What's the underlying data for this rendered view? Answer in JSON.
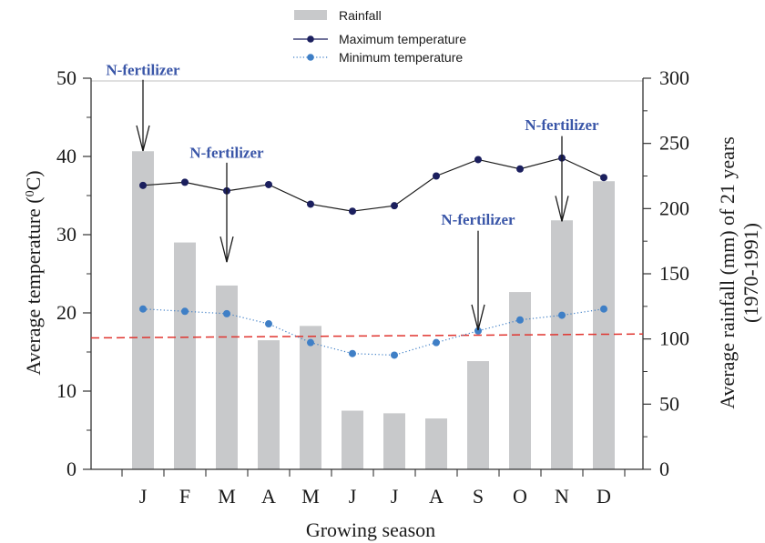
{
  "chart_data": {
    "type": "bar",
    "categories": [
      "J",
      "F",
      "M",
      "A",
      "M",
      "J",
      "J",
      "A",
      "S",
      "O",
      "N",
      "D"
    ],
    "xlabel": "Growing season",
    "ylabel_left": "Average temperature (",
    "ylabel_left_sup": "0",
    "ylabel_left_end": "C)",
    "ylabel_right_line1": "Average rainfall (mm) of 21 years",
    "ylabel_right_line2": "(1970-1991)",
    "ylim_left": [
      0,
      50
    ],
    "yticks_left": [
      0,
      10,
      20,
      30,
      40,
      50
    ],
    "ylim_right": [
      0,
      300
    ],
    "yticks_right": [
      0,
      50,
      100,
      150,
      200,
      250,
      300
    ],
    "series": [
      {
        "name": "Rainfall",
        "kind": "bar",
        "axis": "right",
        "color": "#c8c9cb",
        "values": [
          244,
          174,
          141,
          99,
          110,
          45,
          43,
          39,
          83,
          136,
          191,
          221
        ]
      },
      {
        "name": "Maximum temperature",
        "kind": "line",
        "axis": "left",
        "color": "#1b1f5e",
        "values": [
          36.3,
          36.7,
          35.6,
          36.4,
          33.9,
          33.0,
          33.7,
          37.5,
          39.6,
          38.4,
          39.8,
          37.3
        ]
      },
      {
        "name": "Minimum temperature",
        "kind": "dotted-line",
        "axis": "left",
        "color": "#3f7fc6",
        "values": [
          20.5,
          20.2,
          19.9,
          18.6,
          16.2,
          14.8,
          14.6,
          16.2,
          17.7,
          19.1,
          19.7,
          20.5
        ]
      }
    ],
    "reference_line": {
      "axis": "left",
      "value_start": 16.8,
      "value_end": 17.3,
      "color": "#e0342f"
    },
    "annotations": [
      {
        "text": "N-fertilizer",
        "month_index": 0,
        "text_y_value": 50.4,
        "arrow_from": 49.8,
        "arrow_to": 40.7
      },
      {
        "text": "N-fertilizer",
        "month_index": 2,
        "text_y_value": 39.8,
        "arrow_from": 39.2,
        "arrow_to": 26.5
      },
      {
        "text": "N-fertilizer",
        "month_index": 8,
        "text_y_value": 31.3,
        "arrow_from": 30.5,
        "arrow_to": 17.8
      },
      {
        "text": "N-fertilizer",
        "month_index": 10,
        "text_y_value": 43.4,
        "arrow_from": 42.6,
        "arrow_to": 31.7
      }
    ],
    "legend": {
      "position": "top-center"
    }
  }
}
